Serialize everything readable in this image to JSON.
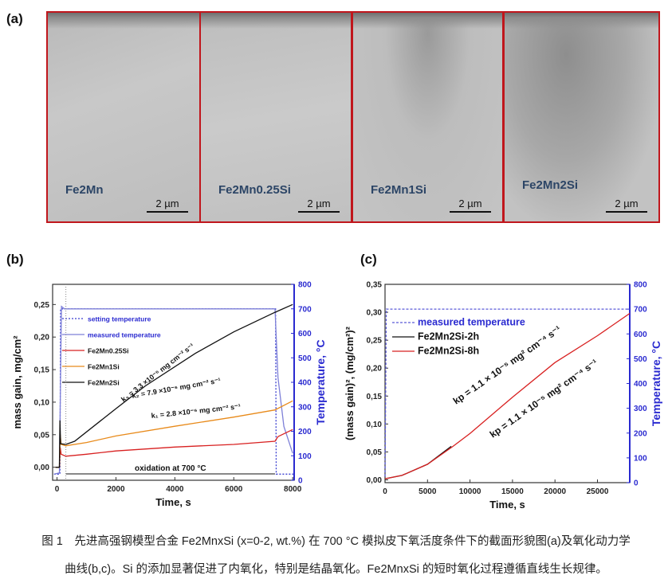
{
  "panel_labels": {
    "a": "(a)",
    "b": "(b)",
    "c": "(c)"
  },
  "micrographs": [
    {
      "name": "Fe2Mn",
      "scale": "2 µm"
    },
    {
      "name": "Fe2Mn0.25Si",
      "scale": "2 µm"
    },
    {
      "name": "Fe2Mn1Si",
      "scale": "2 µm"
    },
    {
      "name": "Fe2Mn2Si",
      "scale": "2 µm"
    }
  ],
  "chart_data": [
    {
      "type": "line",
      "xlabel": "Time, s",
      "ylabel": "mass gain, mg/cm²",
      "y2label": "Temperature, °C",
      "xlim": [
        -150,
        8050
      ],
      "ylim": [
        -0.02,
        0.281
      ],
      "y2lim": [
        0,
        800
      ],
      "xticks": [
        "0",
        "2000",
        "4000",
        "6000",
        "8000"
      ],
      "xtickvals": [
        0,
        2000,
        4000,
        6000,
        8000
      ],
      "yticks": [
        "0,00",
        "0,05",
        "0,10",
        "0,15",
        "0,20",
        "0,25"
      ],
      "ytickvals": [
        0,
        0.05,
        0.1,
        0.15,
        0.2,
        0.25
      ],
      "y2ticks": [
        "0",
        "100",
        "200",
        "300",
        "400",
        "500",
        "600",
        "700",
        "800"
      ],
      "y2tickvals": [
        0,
        100,
        200,
        300,
        400,
        500,
        600,
        700,
        800
      ],
      "series": [
        {
          "name": "setting temperature",
          "axis": "y2",
          "color": "#3a3fd0",
          "dash": "2,2",
          "x": [
            -100,
            100,
            120,
            7420,
            7440,
            8050
          ],
          "y": [
            25,
            25,
            700,
            700,
            25,
            25
          ]
        },
        {
          "name": "measured temperature",
          "axis": "y2",
          "color": "#7e80d8",
          "x": [
            -100,
            80,
            150,
            250,
            7400,
            7500,
            7700,
            8000
          ],
          "y": [
            25,
            30,
            710,
            700,
            700,
            420,
            220,
            110
          ]
        },
        {
          "name": "Fe2Mn0.25Si",
          "axis": "y",
          "color": "#d82020",
          "x": [
            -50,
            80,
            110,
            140,
            300,
            1000,
            2000,
            4000,
            6000,
            7400,
            7500,
            8000
          ],
          "y": [
            0,
            0,
            0.03,
            0.02,
            0.017,
            0.02,
            0.025,
            0.031,
            0.035,
            0.04,
            0.047,
            0.058
          ]
        },
        {
          "name": "Fe2Mn1Si",
          "axis": "y",
          "color": "#e88a1a",
          "x": [
            -50,
            80,
            110,
            140,
            300,
            1000,
            2000,
            4000,
            6000,
            7400,
            8000
          ],
          "y": [
            0,
            0,
            0.05,
            0.035,
            0.033,
            0.038,
            0.048,
            0.063,
            0.077,
            0.088,
            0.102
          ]
        },
        {
          "name": "Fe2Mn2Si",
          "axis": "y",
          "color": "#111111",
          "x": [
            -50,
            80,
            100,
            120,
            300,
            600,
            2000,
            3000,
            4700,
            6000,
            7400,
            8000
          ],
          "y": [
            0,
            0,
            0.072,
            0.036,
            0.035,
            0.04,
            0.09,
            0.125,
            0.175,
            0.208,
            0.238,
            0.25
          ]
        }
      ],
      "legend_position": "top-left",
      "annotations": [
        "k₃ = 3.3 ×10⁻⁵ mg cm⁻² s⁻¹",
        "k₂ = 7.9 ×10⁻⁶ mg cm⁻² s⁻¹",
        "k₁ = 2.8 ×10⁻⁶ mg cm⁻² s⁻¹",
        "oxidation at 700 °C"
      ]
    },
    {
      "type": "line",
      "xlabel": "Time, s",
      "ylabel": "(mass gain)², (mg/cm²)²",
      "y2label": "Temperature, °C",
      "xlim": [
        0,
        28800
      ],
      "ylim": [
        -0.005,
        0.35
      ],
      "y2lim": [
        0,
        800
      ],
      "xticks": [
        "0",
        "5000",
        "10000",
        "15000",
        "20000",
        "25000"
      ],
      "xtickvals": [
        0,
        5000,
        10000,
        15000,
        20000,
        25000
      ],
      "yticks": [
        "0,00",
        "0,05",
        "0,10",
        "0,15",
        "0,20",
        "0,25",
        "0,30",
        "0,35"
      ],
      "ytickvals": [
        0,
        0.05,
        0.1,
        0.15,
        0.2,
        0.25,
        0.3,
        0.35
      ],
      "y2ticks": [
        "0",
        "100",
        "200",
        "300",
        "400",
        "500",
        "600",
        "700",
        "800"
      ],
      "y2tickvals": [
        0,
        100,
        200,
        300,
        400,
        500,
        600,
        700,
        800
      ],
      "series": [
        {
          "name": "measured temperature",
          "axis": "y2",
          "color": "#5a5ad8",
          "dash": "3,2",
          "x": [
            0,
            150,
            400,
            28800
          ],
          "y": [
            25,
            700,
            700,
            700
          ]
        },
        {
          "name": "Fe2Mn2Si-2h",
          "axis": "y",
          "color": "#111111",
          "x": [
            0,
            2000,
            5000,
            7800
          ],
          "y": [
            0.002,
            0.008,
            0.028,
            0.06
          ]
        },
        {
          "name": "Fe2Mn2Si-8h",
          "axis": "y",
          "color": "#d82020",
          "x": [
            0,
            2000,
            5000,
            8000,
            10000,
            15000,
            20000,
            25000,
            28800
          ],
          "y": [
            0.002,
            0.008,
            0.028,
            0.06,
            0.083,
            0.148,
            0.21,
            0.258,
            0.298
          ]
        }
      ],
      "legend_position": "top-left",
      "annotations": [
        "kp = 1.1 × 10⁻⁵ mg² cm⁻⁴ s⁻¹",
        "kp = 1.1 × 10⁻⁵ mg² cm⁻⁴ s⁻¹"
      ]
    }
  ],
  "caption": {
    "line1": "图 1　先进高强钢模型合金 Fe2MnxSi (x=0-2, wt.%) 在 700 °C 模拟皮下氧活度条件下的截面形貌图(a)及氧化动力学",
    "line2": "曲线(b,c)。Si 的添加显著促进了内氧化，特别是结晶氧化。Fe2MnxSi 的短时氧化过程遵循直线生长规律。"
  }
}
